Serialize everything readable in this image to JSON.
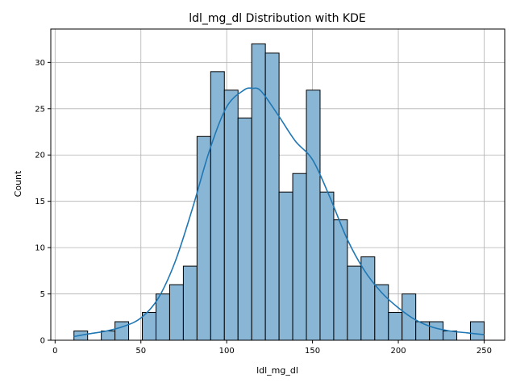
{
  "chart_data": {
    "type": "bar",
    "title": "ldl_mg_dl Distribution with KDE",
    "xlabel": "ldl_mg_dl",
    "ylabel": "Count",
    "xlim": [
      -2.5,
      262
    ],
    "ylim": [
      0,
      33.6
    ],
    "xticks": [
      0,
      50,
      100,
      150,
      200,
      250
    ],
    "yticks": [
      0,
      5,
      10,
      15,
      20,
      25,
      30
    ],
    "grid": true,
    "bins": {
      "start": 11,
      "width": 7.967,
      "counts": [
        1,
        0,
        1,
        2,
        0,
        3,
        5,
        6,
        8,
        22,
        29,
        27,
        24,
        32,
        31,
        16,
        18,
        27,
        16,
        13,
        8,
        9,
        6,
        3,
        5,
        2,
        2,
        1,
        0,
        2
      ]
    },
    "kde": {
      "x": [
        11,
        20,
        30,
        40,
        50,
        60,
        70,
        80,
        90,
        100,
        110,
        115,
        120,
        130,
        140,
        150,
        160,
        170,
        180,
        190,
        200,
        210,
        220,
        230,
        240,
        250
      ],
      "y": [
        0.4,
        0.7,
        1.0,
        1.5,
        2.4,
        4.5,
        8.5,
        14.2,
        20.5,
        25.2,
        27.0,
        27.2,
        26.9,
        24.3,
        21.5,
        19.5,
        15.5,
        11.0,
        7.6,
        5.2,
        3.5,
        2.2,
        1.4,
        1.0,
        0.8,
        0.6
      ]
    },
    "colors": {
      "bar_fill": "#8ab6d6",
      "bar_edge": "#000000",
      "kde_line": "#1f77b4",
      "grid": "#b0b0b0"
    }
  }
}
